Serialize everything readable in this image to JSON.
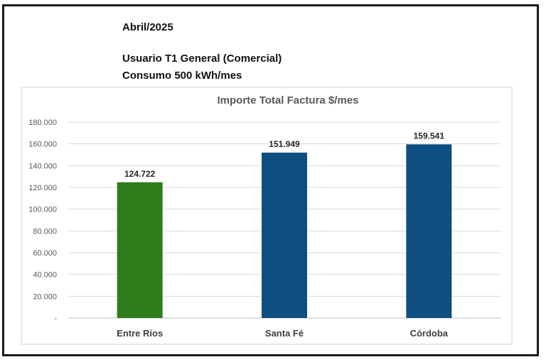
{
  "header": {
    "period": "Abril/2025",
    "user_type": "Usuario T1 General (Comercial)",
    "consumption": "Consumo  500 kWh/mes"
  },
  "chart_data": {
    "type": "bar",
    "title": "Importe Total  Factura $/mes",
    "xlabel": "",
    "ylabel": "",
    "categories": [
      "Entre Ríos",
      "Santa Fé",
      "Córdoba"
    ],
    "values": [
      124722,
      151949,
      159541
    ],
    "value_labels": [
      "124.722",
      "151.949",
      "159.541"
    ],
    "bar_colors": [
      "#2e7d1a",
      "#0f4e80",
      "#0f4e80"
    ],
    "ylim": [
      0,
      180000
    ],
    "yticks": [
      0,
      20000,
      40000,
      60000,
      80000,
      100000,
      120000,
      140000,
      160000,
      180000
    ],
    "ytick_labels": [
      "-",
      "20.000",
      "40.000",
      "60.000",
      "80.000",
      "100.000",
      "120.000",
      "140.000",
      "160.000",
      "180.000"
    ],
    "grid": true,
    "legend": "none"
  }
}
